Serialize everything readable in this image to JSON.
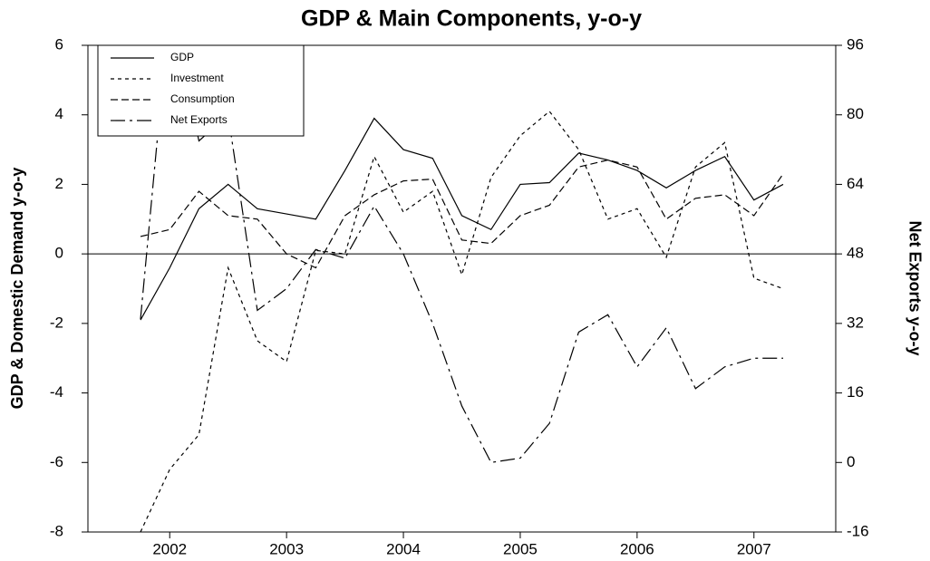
{
  "chart_data": {
    "type": "line",
    "title": "GDP & Main Components, y-o-y",
    "y_label": "GDP & Domestic Demand y-o-y",
    "y2_label": "Net Exports y-o-y",
    "x": [
      2001.75,
      2002.0,
      2002.25,
      2002.5,
      2002.75,
      2003.0,
      2003.25,
      2003.5,
      2003.75,
      2004.0,
      2004.25,
      2004.5,
      2004.75,
      2005.0,
      2005.25,
      2005.5,
      2005.75,
      2006.0,
      2006.25,
      2006.5,
      2006.75,
      2007.0,
      2007.25
    ],
    "xlim": [
      2001.3,
      2007.7
    ],
    "xticks": [
      {
        "value": 2002.0,
        "label": "2002"
      },
      {
        "value": 2003.0,
        "label": "2003"
      },
      {
        "value": 2004.0,
        "label": "2004"
      },
      {
        "value": 2005.0,
        "label": "2005"
      },
      {
        "value": 2006.0,
        "label": "2006"
      },
      {
        "value": 2007.0,
        "label": "2007"
      }
    ],
    "ylim": [
      -8,
      6
    ],
    "yticks": [
      -8,
      -6,
      -4,
      -2,
      0,
      2,
      4,
      6
    ],
    "y2lim": [
      -16,
      96
    ],
    "y2ticks": [
      -16,
      0,
      16,
      32,
      48,
      64,
      80,
      96
    ],
    "zero_line": true,
    "legend": "top-left",
    "series": [
      {
        "name": "GDP",
        "color": "#000000",
        "dash": "none",
        "values": [
          -1.9,
          -0.4,
          1.3,
          2.0,
          1.3,
          1.15,
          1.0,
          2.4,
          3.9,
          3.0,
          2.75,
          1.1,
          0.7,
          2.0,
          2.05,
          2.9,
          2.7,
          2.4,
          1.9,
          2.4,
          2.8,
          1.55,
          2.0
        ]
      },
      {
        "name": "Investment",
        "color": "#000000",
        "dash": "4,4",
        "values": [
          -8.0,
          -6.2,
          -5.2,
          -0.4,
          -2.5,
          -3.1,
          0.1,
          0.0,
          2.8,
          1.2,
          1.8,
          -0.6,
          2.2,
          3.4,
          4.1,
          3.0,
          1.0,
          1.3,
          -0.1,
          2.5,
          3.2,
          -0.7,
          -1.0
        ]
      },
      {
        "name": "Consumption",
        "color": "#000000",
        "dash": "8,4",
        "values": [
          0.5,
          0.7,
          1.8,
          1.1,
          1.0,
          0.0,
          -0.4,
          1.1,
          1.7,
          2.1,
          2.15,
          0.4,
          0.3,
          1.1,
          1.4,
          2.5,
          2.7,
          2.5,
          1.0,
          1.6,
          1.7,
          1.1,
          2.3
        ]
      },
      {
        "name": "Net Exports",
        "color": "#000000",
        "dash": "16,5,3,5",
        "axis": "y2",
        "values": [
          33,
          105,
          74,
          80,
          35,
          40,
          49,
          47,
          59,
          48,
          32,
          13,
          0,
          1,
          9,
          30,
          34,
          22,
          31,
          17,
          22,
          24,
          24
        ]
      }
    ]
  }
}
